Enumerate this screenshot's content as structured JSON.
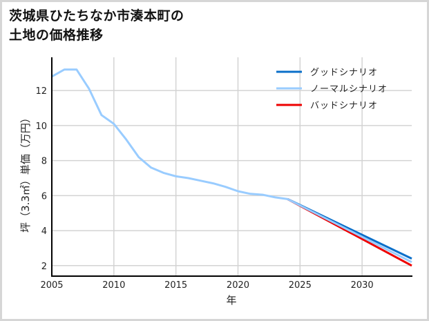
{
  "title": "茨城県ひたちなか市湊本町の\n土地の価格推移",
  "chart_data": {
    "type": "line",
    "title": "茨城県ひたちなか市湊本町の土地の価格推移",
    "xlabel": "年",
    "ylabel": "坪（3.3㎡）単価（万円）",
    "xlim": [
      2005,
      2034
    ],
    "ylim": [
      1.4,
      13.9
    ],
    "xticks": [
      2005,
      2010,
      2015,
      2020,
      2025,
      2030
    ],
    "yticks": [
      2,
      4,
      6,
      8,
      10,
      12
    ],
    "grid": true,
    "legend_position": "upper right",
    "series": [
      {
        "name": "グッドシナリオ",
        "color": "#0a6fc9",
        "x": [
          2024,
          2034
        ],
        "values": [
          5.8,
          2.4
        ]
      },
      {
        "name": "ノーマルシナリオ",
        "color": "#99ccff",
        "x": [
          2005,
          2006,
          2007,
          2008,
          2009,
          2010,
          2011,
          2012,
          2013,
          2014,
          2015,
          2016,
          2017,
          2018,
          2019,
          2020,
          2021,
          2022,
          2023,
          2024,
          2034
        ],
        "values": [
          12.8,
          13.2,
          13.2,
          12.1,
          10.6,
          10.1,
          9.2,
          8.2,
          7.6,
          7.3,
          7.1,
          7.0,
          6.85,
          6.7,
          6.5,
          6.25,
          6.1,
          6.05,
          5.9,
          5.8,
          2.2
        ]
      },
      {
        "name": "バッドシナリオ",
        "color": "#ee0000",
        "x": [
          2024,
          2034
        ],
        "values": [
          5.8,
          2.0
        ]
      }
    ]
  },
  "axes": {
    "xlabel": "年",
    "ylabel": "坪（3.3㎡）単価（万円）",
    "xtick_labels": [
      "2005",
      "2010",
      "2015",
      "2020",
      "2025",
      "2030"
    ],
    "ytick_labels": [
      "2",
      "4",
      "6",
      "8",
      "10",
      "12"
    ]
  },
  "legend": [
    {
      "label": "グッドシナリオ",
      "color": "#0a6fc9"
    },
    {
      "label": "ノーマルシナリオ",
      "color": "#99ccff"
    },
    {
      "label": "バッドシナリオ",
      "color": "#ee0000"
    }
  ]
}
